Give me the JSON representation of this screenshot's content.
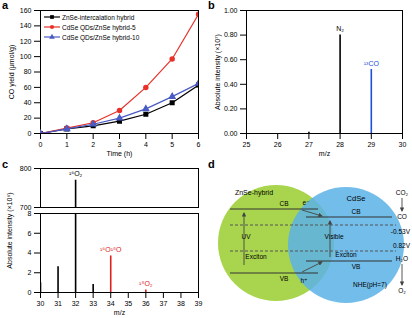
{
  "chart_data": [
    {
      "panel": "a",
      "type": "line",
      "x_label": "Time (h)",
      "y_label": "CO yield (μmol/g)",
      "x": [
        0,
        1,
        2,
        3,
        4,
        5,
        6
      ],
      "xlim": [
        0,
        6
      ],
      "xticks": [
        0,
        1,
        2,
        3,
        4,
        5,
        6
      ],
      "ylim": [
        0,
        160
      ],
      "yticks": [
        0,
        20,
        40,
        60,
        80,
        100,
        120,
        140,
        160
      ],
      "legend": "upper left",
      "series": [
        {
          "name": "ZnSe-intercalation hybrid",
          "color": "#000000",
          "marker": "square",
          "values": [
            0,
            6,
            10,
            16,
            25,
            40,
            63
          ]
        },
        {
          "name": "CdSe QDs/ZnSe hybrid-5",
          "color": "#e8312a",
          "marker": "circle",
          "values": [
            0,
            7,
            14,
            30,
            60,
            97,
            155
          ]
        },
        {
          "name": "CdSe QDs/ZnSe hybrid-10",
          "color": "#4a5bc4",
          "marker": "triangle",
          "values": [
            0,
            6,
            12,
            20,
            32,
            48,
            65
          ]
        }
      ]
    },
    {
      "panel": "b",
      "type": "bar",
      "x_label": "m/z",
      "y_label": "Absolute intensity (×10⁷)",
      "x": [
        27,
        28,
        29
      ],
      "values": [
        0.01,
        0.8,
        0.52
      ],
      "colors": [
        "#000000",
        "#000000",
        "#1f4fd8"
      ],
      "peak_labels": [
        null,
        "N₂",
        "¹³CO"
      ],
      "xlim": [
        25,
        30
      ],
      "xticks": [
        25,
        26,
        27,
        28,
        29,
        30
      ],
      "ylim": [
        0,
        1
      ],
      "yticks": [
        {
          "value": 0,
          "label": "0.00"
        },
        {
          "value": 0.2,
          "label": "0.20"
        },
        {
          "value": 0.4,
          "label": "0.40"
        },
        {
          "value": 0.6,
          "label": "0.60"
        },
        {
          "value": 0.8,
          "label": "0.80"
        },
        {
          "value": 1,
          "label": "1.00"
        }
      ]
    },
    {
      "panel": "c",
      "type": "bar",
      "x_label": "m/z",
      "y_label": "Absolute intensity (×10⁶)",
      "x": [
        30,
        31,
        32,
        33,
        34,
        36
      ],
      "values": [
        1.0,
        2.6,
        770,
        0.8,
        3.7,
        0.25
      ],
      "colors": [
        "#000000",
        "#000000",
        "#000000",
        "#000000",
        "#e02020",
        "#e02020"
      ],
      "peak_labels": [
        null,
        null,
        "¹⁶O₂",
        null,
        "¹⁶O¹⁸O",
        "¹⁸O₂"
      ],
      "xlim": [
        30,
        39
      ],
      "xticks": [
        30,
        31,
        32,
        33,
        34,
        35,
        36,
        37,
        38,
        39
      ],
      "ylim": [
        0,
        800
      ],
      "yticks": [
        0,
        2,
        4,
        6,
        8,
        700,
        800
      ],
      "ybreak": [
        8,
        700
      ]
    }
  ],
  "diagram": {
    "panel": "d",
    "left": {
      "label": "ZnSe-hybrid",
      "cb": "CB",
      "vb": "VB",
      "light": "UV",
      "exciton": "Exciton"
    },
    "right": {
      "label": "CdSe",
      "cb": "CB",
      "vb": "VB",
      "light": "Visible",
      "exciton": "Exciton"
    },
    "electron": "e⁻",
    "hole": "h⁺",
    "reduction": {
      "reactant": "CO₂",
      "product": "CO",
      "potential": "-0.53V"
    },
    "oxidation": {
      "reactant": "H₂O",
      "product": "O₂",
      "potential": "0.82V"
    },
    "reference": "NHE(pH=7)"
  }
}
